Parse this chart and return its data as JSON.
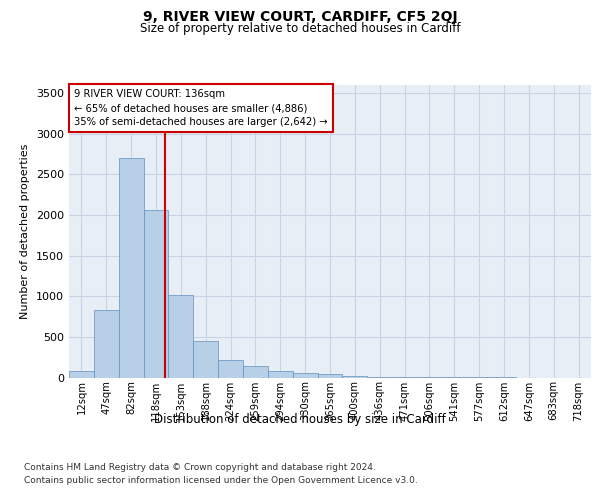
{
  "title": "9, RIVER VIEW COURT, CARDIFF, CF5 2QJ",
  "subtitle": "Size of property relative to detached houses in Cardiff",
  "xlabel": "Distribution of detached houses by size in Cardiff",
  "ylabel": "Number of detached properties",
  "categories": [
    "12sqm",
    "47sqm",
    "82sqm",
    "118sqm",
    "153sqm",
    "188sqm",
    "224sqm",
    "259sqm",
    "294sqm",
    "330sqm",
    "365sqm",
    "400sqm",
    "436sqm",
    "471sqm",
    "506sqm",
    "541sqm",
    "577sqm",
    "612sqm",
    "647sqm",
    "683sqm",
    "718sqm"
  ],
  "values": [
    75,
    830,
    2700,
    2060,
    1020,
    450,
    215,
    140,
    75,
    55,
    45,
    20,
    10,
    5,
    3,
    2,
    1,
    1,
    0,
    0,
    0
  ],
  "bar_color": "#b8cfe8",
  "bar_edge_color": "#6090c0",
  "grid_color": "#c8d4e4",
  "background_color": "#e8eef6",
  "vline_x": 3.38,
  "vline_color": "#cc0000",
  "annotation_text": "9 RIVER VIEW COURT: 136sqm\n← 65% of detached houses are smaller (4,886)\n35% of semi-detached houses are larger (2,642) →",
  "annotation_box_color": "#ffffff",
  "annotation_box_edge": "#cc0000",
  "ylim": [
    0,
    3600
  ],
  "yticks": [
    0,
    500,
    1000,
    1500,
    2000,
    2500,
    3000,
    3500
  ],
  "footer_line1": "Contains HM Land Registry data © Crown copyright and database right 2024.",
  "footer_line2": "Contains public sector information licensed under the Open Government Licence v3.0."
}
